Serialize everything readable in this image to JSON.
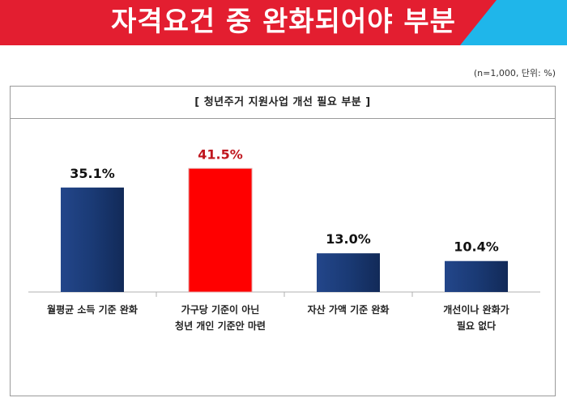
{
  "header": {
    "title": "자격요건 중 완화되어야 부분"
  },
  "note": "(n=1,000, 단위: %)",
  "colors": {
    "banner": "#e31e30",
    "accent": "#1fb6ea",
    "bar": "#1a3a75",
    "highlight_bar": "#ff0000",
    "highlight_label": "#c0161e"
  },
  "chart_data": {
    "type": "bar",
    "title": "[ 청년주거 지원사업 개선 필요 부분 ]",
    "categories": [
      [
        "월평균 소득 기준 완화"
      ],
      [
        "가구당 기준이 아닌",
        "청년 개인 기준안 마련"
      ],
      [
        "자산 가액 기준 완화"
      ],
      [
        "개선이나 완화가",
        "필요 없다"
      ]
    ],
    "values": [
      35.1,
      41.5,
      13.0,
      10.4
    ],
    "value_labels": [
      "35.1%",
      "41.5%",
      "13.0%",
      "10.4%"
    ],
    "highlight_index": 1,
    "ylim": [
      0,
      50
    ],
    "grid": false,
    "xlabel": "",
    "ylabel": ""
  }
}
